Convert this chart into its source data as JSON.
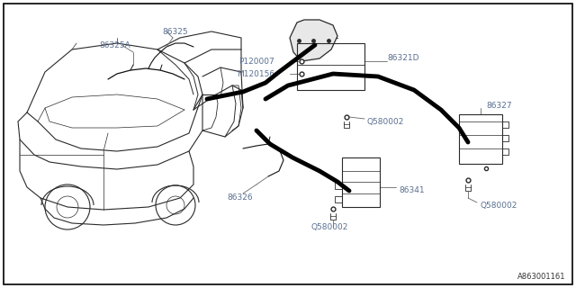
{
  "background_color": "#ffffff",
  "diagram_id": "A863001161",
  "text_color": "#5a7090",
  "line_color": "#333333",
  "font_size": 6.5,
  "xlim": [
    0,
    640
  ],
  "ylim": [
    0,
    320
  ]
}
